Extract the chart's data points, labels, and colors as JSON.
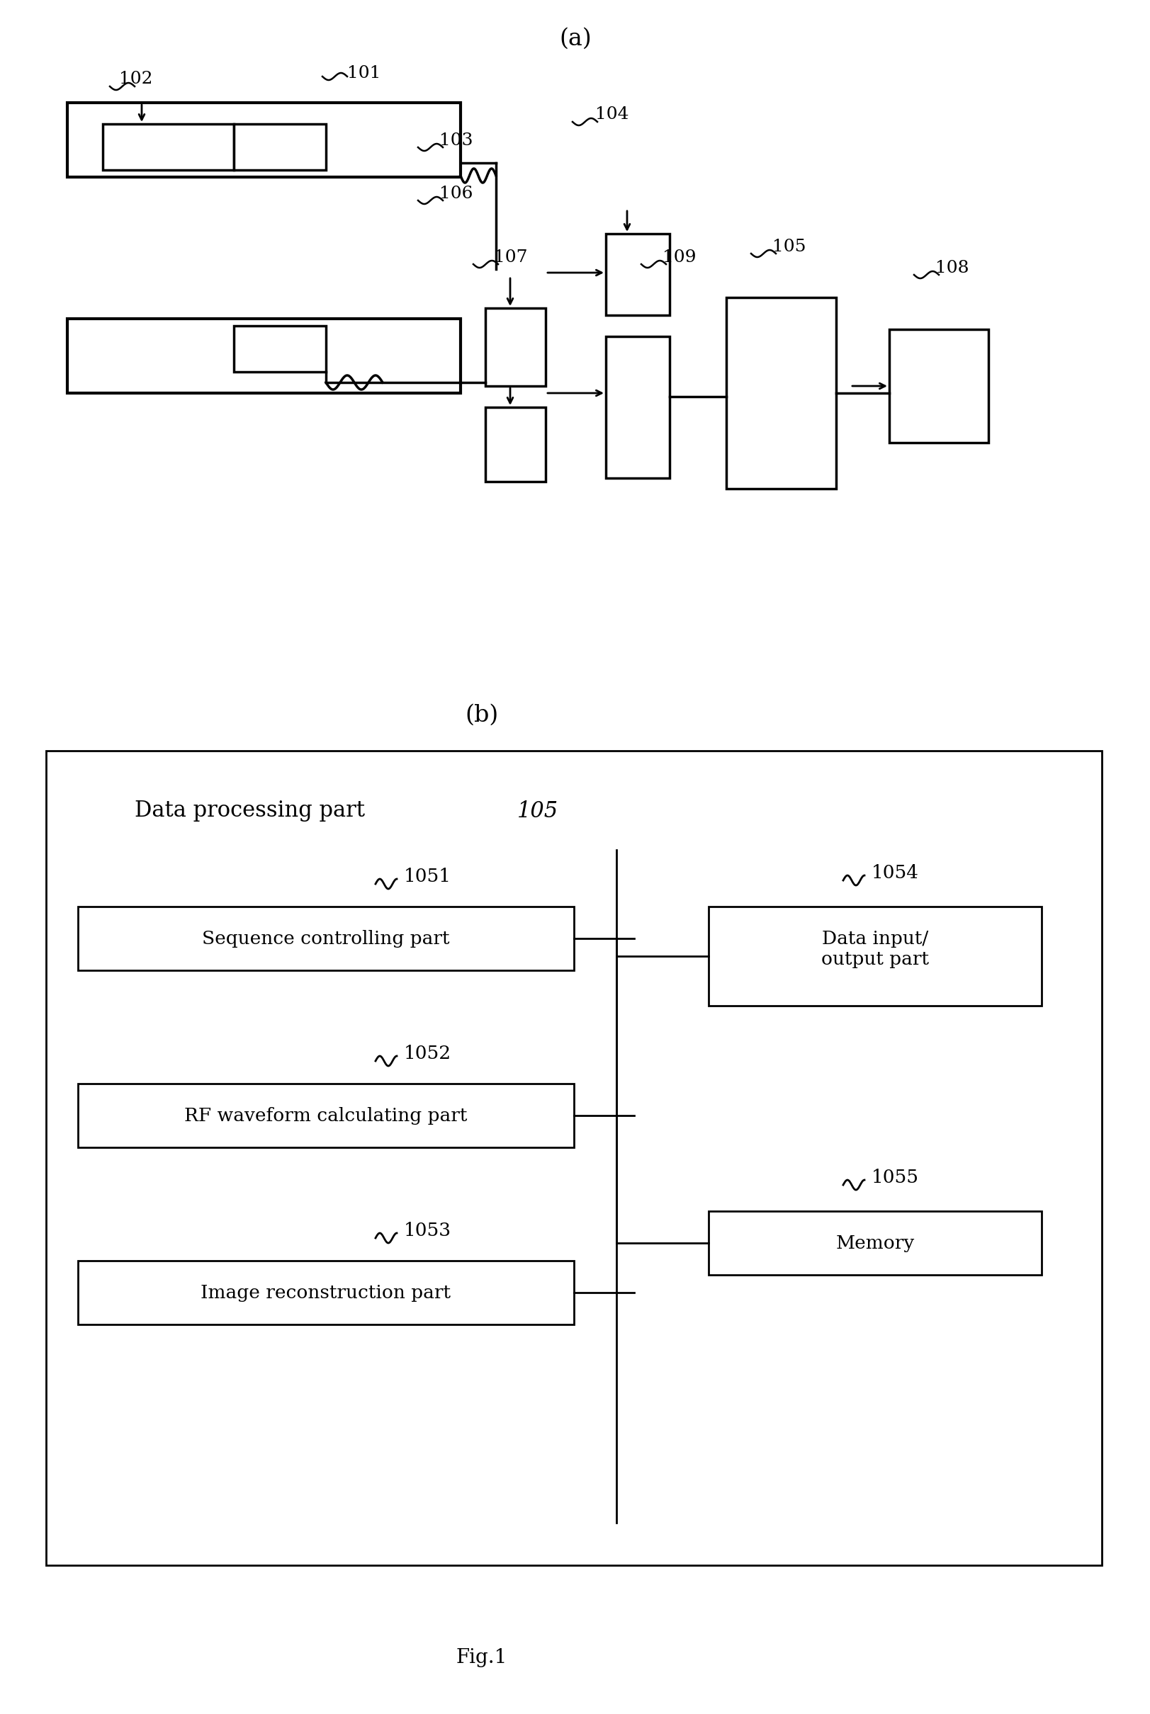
{
  "fig_width": 16.24,
  "fig_height": 24.2,
  "bg_color": "#ffffff",
  "label_a": "(a)",
  "label_b": "(b)",
  "fig_label": "Fig.1"
}
